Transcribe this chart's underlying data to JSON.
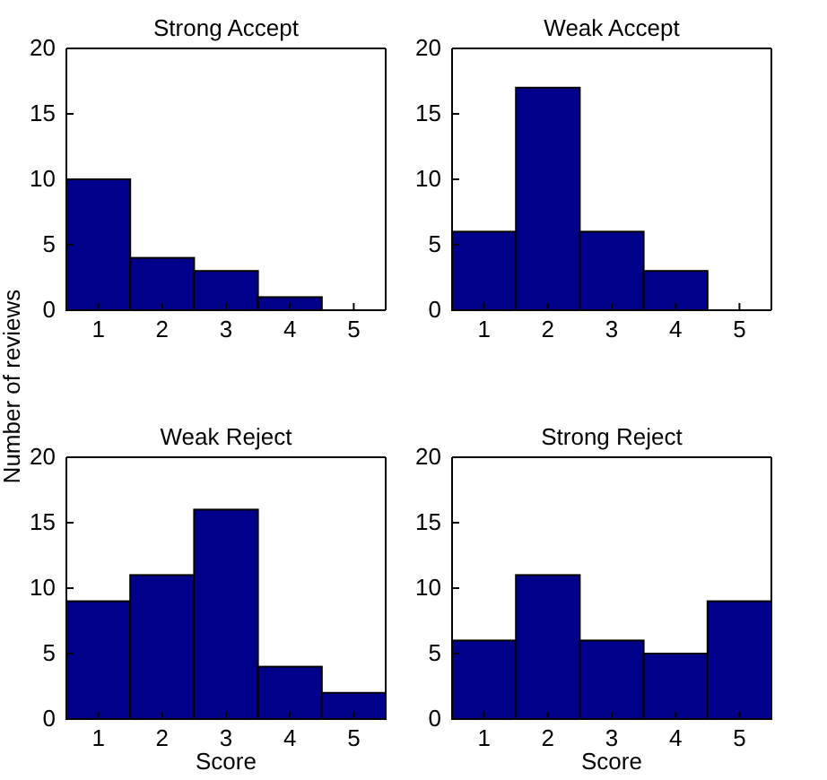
{
  "chart_data": [
    {
      "type": "bar",
      "title": "Strong Accept",
      "ylabel": "Number of reviews",
      "categories": [
        "1",
        "2",
        "3",
        "4",
        "5"
      ],
      "values": [
        10,
        4,
        3,
        1,
        0
      ],
      "color": "#00008b",
      "ylim": [
        0,
        20
      ],
      "yticks": [
        0,
        5,
        10,
        15,
        20
      ],
      "grid": false
    },
    {
      "type": "bar",
      "title": "Weak Accept",
      "categories": [
        "1",
        "2",
        "3",
        "4",
        "5"
      ],
      "values": [
        6,
        17,
        6,
        3,
        0
      ],
      "color": "#00008b",
      "ylim": [
        0,
        20
      ],
      "yticks": [
        0,
        5,
        10,
        15,
        20
      ],
      "grid": false
    },
    {
      "type": "bar",
      "title": "Weak Reject",
      "xlabel": "Score",
      "categories": [
        "1",
        "2",
        "3",
        "4",
        "5"
      ],
      "values": [
        9,
        11,
        16,
        4,
        2
      ],
      "color": "#00008b",
      "ylim": [
        0,
        20
      ],
      "yticks": [
        0,
        5,
        10,
        15,
        20
      ],
      "grid": false
    },
    {
      "type": "bar",
      "title": "Strong Reject",
      "xlabel": "Score",
      "categories": [
        "1",
        "2",
        "3",
        "4",
        "5"
      ],
      "values": [
        6,
        11,
        6,
        5,
        9
      ],
      "color": "#00008b",
      "ylim": [
        0,
        20
      ],
      "yticks": [
        0,
        5,
        10,
        15,
        20
      ],
      "grid": false
    }
  ]
}
